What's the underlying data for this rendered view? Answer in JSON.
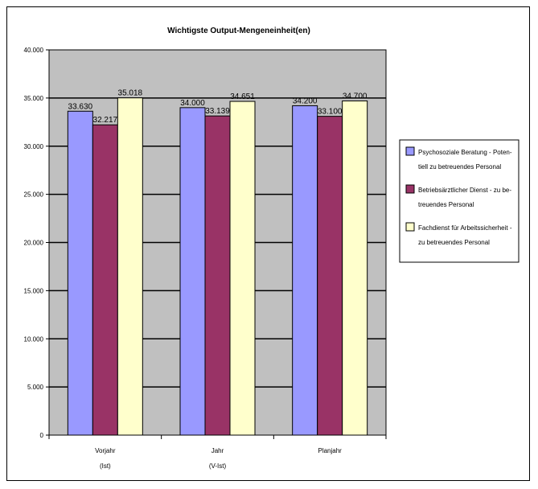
{
  "chart_data": {
    "type": "bar",
    "title": "Wichtigste Output-Mengeneinheit(en)",
    "xlabel": "",
    "ylabel": "",
    "categories": [
      {
        "line1": "Vorjahr",
        "line2": "(Ist)"
      },
      {
        "line1": "Jahr",
        "line2": "(V-Ist)"
      },
      {
        "line1": "Planjahr",
        "line2": ""
      }
    ],
    "series": [
      {
        "name_lines": [
          "Psychosoziale Beratung - Poten-",
          "tiell zu betreuendes Personal"
        ],
        "values": [
          33630,
          34000,
          34200
        ],
        "labels": [
          "33.630",
          "34.000",
          "34.200"
        ],
        "color": "#9999ff"
      },
      {
        "name_lines": [
          "Betriebsärztlicher Dienst - zu be-",
          "treuendes Personal"
        ],
        "values": [
          32217,
          33139,
          33100
        ],
        "labels": [
          "32.217",
          "33.139",
          "33.100"
        ],
        "color": "#993366"
      },
      {
        "name_lines": [
          "Fachdienst für Arbeitssicherheit -",
          "zu betreuendes Personal"
        ],
        "values": [
          35018,
          34651,
          34700
        ],
        "labels": [
          "35.018",
          "34.651",
          "34.700"
        ],
        "color": "#ffffcc"
      }
    ],
    "ylim": [
      0,
      40000
    ],
    "yticks": [
      0,
      5000,
      10000,
      15000,
      20000,
      25000,
      30000,
      35000,
      40000
    ],
    "ytick_labels": [
      "0",
      "5.000",
      "10.000",
      "15.000",
      "20.000",
      "25.000",
      "30.000",
      "35.000",
      "40.000"
    ],
    "grid": true,
    "plot_background": "#c0c0c0",
    "legend_position": "right"
  }
}
